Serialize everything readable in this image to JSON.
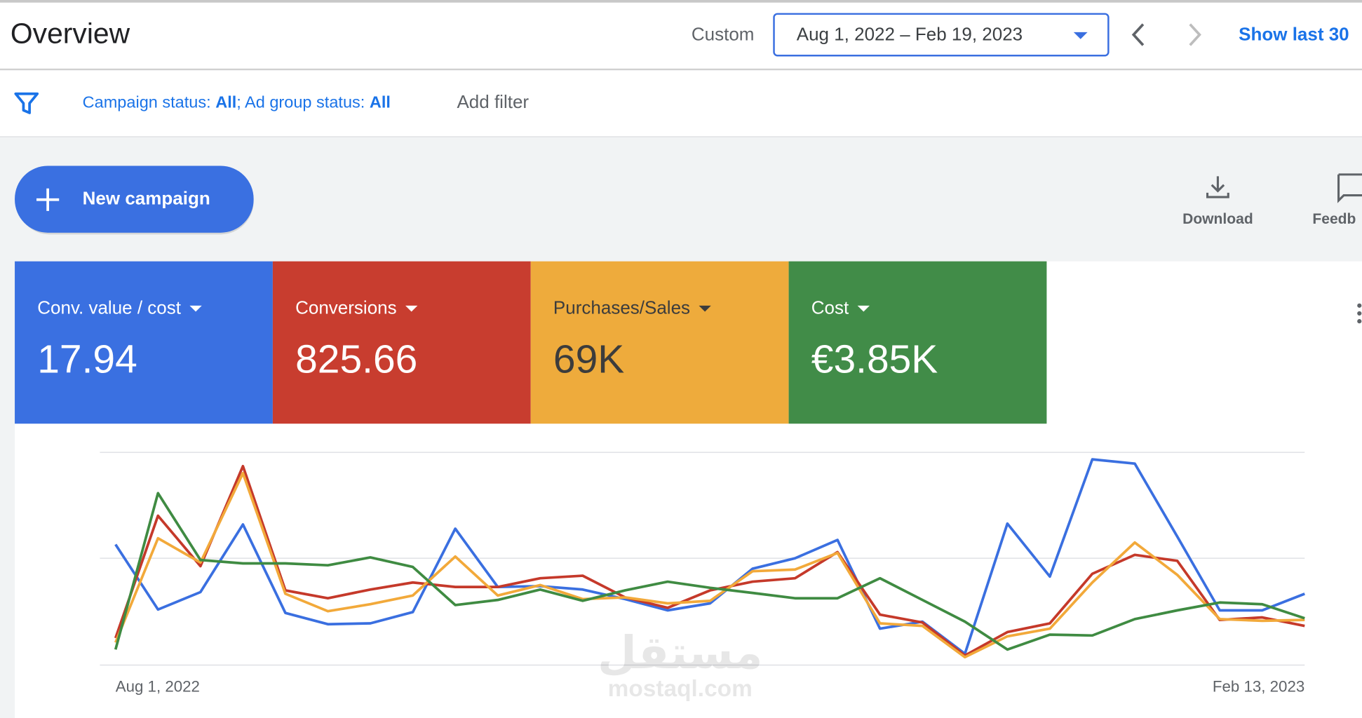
{
  "header": {
    "title": "Overview",
    "range_label": "Custom",
    "date_range": "Aug 1, 2022 – Feb 19, 2023",
    "show_last": "Show last 30"
  },
  "filters": {
    "parts": [
      "Campaign status: ",
      "All",
      "; Ad group status: ",
      "All"
    ],
    "add": "Add filter"
  },
  "actions": {
    "new_campaign": "New campaign",
    "download": "Download",
    "feedback": "Feedb"
  },
  "watermark": {
    "logo": "مستقل",
    "site": "mostaql.com"
  },
  "chart_data": {
    "type": "line",
    "categories": [
      "Aug 1, 2022",
      null,
      null,
      null,
      null,
      null,
      null,
      null,
      null,
      null,
      null,
      null,
      null,
      null,
      null,
      null,
      null,
      null,
      null,
      null,
      null,
      null,
      null,
      null,
      null,
      null,
      null,
      null,
      "Feb 13, 2023"
    ],
    "ylim": [
      0,
      100
    ],
    "series": [
      {
        "name": "Conv. value / cost",
        "total": "17.94",
        "color": "#3a6fe0",
        "card_color": "#3a70e1",
        "text_color": "#ffffff",
        "values": [
          56.7,
          26.1,
          34.3,
          66.1,
          24.5,
          19.2,
          19.6,
          24.9,
          64.1,
          36.7,
          37.1,
          35.5,
          31.0,
          25.7,
          29.0,
          45.3,
          50.2,
          58.8,
          17.1,
          20.4,
          5.3,
          66.5,
          41.6,
          96.7,
          94.7,
          60.4,
          25.7,
          25.7,
          33.5
        ]
      },
      {
        "name": "Conversions",
        "total": "825.66",
        "color": "#c5392a",
        "card_color": "#c83d2f",
        "text_color": "#ffffff",
        "values": [
          12.7,
          70.2,
          46.5,
          93.5,
          35.1,
          31.4,
          35.5,
          38.8,
          36.7,
          36.7,
          40.8,
          42.0,
          31.8,
          26.9,
          35.1,
          39.2,
          40.8,
          53.1,
          23.7,
          20.0,
          4.5,
          15.5,
          19.6,
          42.9,
          51.8,
          49.0,
          21.2,
          22.4,
          18.4
        ]
      },
      {
        "name": "Purchases/Sales",
        "total": "69K",
        "color": "#f2a93a",
        "card_color": "#eeab3c",
        "text_color": "#3c3c3c",
        "values": [
          10.6,
          59.6,
          48.2,
          90.2,
          33.5,
          25.3,
          28.6,
          32.7,
          51.0,
          32.7,
          37.6,
          31.0,
          31.8,
          29.0,
          30.2,
          44.1,
          44.9,
          52.7,
          19.6,
          18.4,
          3.7,
          13.5,
          17.1,
          38.8,
          57.6,
          42.4,
          21.6,
          20.8,
          21.2
        ]
      },
      {
        "name": "Cost",
        "total": "€3.85K",
        "color": "#3f8b42",
        "card_color": "#418c48",
        "text_color": "#ffffff",
        "values": [
          7.3,
          80.8,
          49.4,
          47.8,
          47.8,
          46.9,
          50.6,
          46.1,
          28.2,
          30.6,
          35.5,
          30.2,
          35.1,
          39.2,
          36.3,
          33.9,
          31.4,
          31.4,
          40.8,
          30.6,
          20.4,
          7.3,
          14.3,
          13.9,
          21.6,
          25.7,
          29.4,
          28.6,
          22.0
        ]
      }
    ]
  }
}
